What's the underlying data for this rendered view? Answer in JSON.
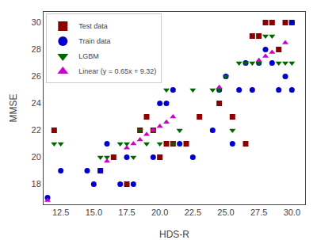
{
  "chart_data": {
    "type": "scatter",
    "xlabel": "HDS-R",
    "ylabel": "MMSE",
    "series": [
      {
        "name": "Test data",
        "color": "#8b0000",
        "marker": "square-x",
        "x": [
          12.0,
          15.5,
          16.5,
          17.5,
          18.5,
          19.0,
          19.5,
          20.0,
          20.5,
          21.0,
          22.0,
          23.0,
          24.5,
          25.5,
          26.5,
          27.0,
          27.5,
          28.0,
          28.5,
          29.0,
          29.5,
          30.0
        ],
        "values": [
          22,
          19,
          20,
          18,
          22,
          23,
          22,
          20,
          21,
          21,
          21,
          23,
          24,
          23,
          21,
          29,
          29,
          30,
          30,
          28,
          30,
          30
        ]
      },
      {
        "name": "Train data",
        "color": "#0000cc",
        "marker": "circle",
        "x": [
          11.5,
          12.5,
          14.5,
          15.0,
          15.5,
          16.0,
          17.0,
          17.5,
          18.0,
          19.5,
          20.0,
          20.5,
          21.0,
          21.5,
          22.5,
          24.0,
          24.5,
          25.0,
          25.5,
          26.0,
          26.5,
          27.0,
          27.5,
          28.0,
          28.5,
          29.0,
          29.5,
          30.0,
          30.0
        ],
        "values": [
          17,
          19,
          19,
          18,
          19,
          21,
          18,
          20,
          18,
          20,
          24,
          24,
          25,
          21,
          20,
          22,
          25,
          26,
          21,
          25,
          27,
          25,
          27,
          28,
          27,
          25,
          26,
          25,
          30
        ]
      },
      {
        "name": "LGBM",
        "color": "#006400",
        "marker": "triangle-down",
        "x": [
          12.0,
          12.5,
          15.5,
          16.0,
          17.0,
          17.5,
          18.0,
          18.5,
          19.0,
          19.5,
          20.0,
          20.5,
          21.0,
          21.5,
          22.5,
          24.0,
          24.5,
          25.0,
          25.5,
          26.0,
          26.5,
          27.0,
          27.5,
          28.0,
          28.5,
          29.0,
          29.5,
          30.0
        ],
        "values": [
          21,
          21,
          20,
          20,
          21,
          21,
          20,
          22,
          21,
          22,
          21,
          25,
          21,
          22,
          25,
          25,
          25,
          26,
          22,
          27,
          27,
          27,
          27,
          29,
          29,
          27,
          27,
          27
        ]
      },
      {
        "name": "Linear (y = 0.65x + 9.32)",
        "color": "#cc00cc",
        "marker": "triangle-up",
        "x": [
          11.5,
          16.0,
          17.5,
          18.0,
          18.5,
          19.0,
          19.5,
          20.0,
          20.5,
          21.0,
          24.5,
          27.5,
          28.0,
          28.5,
          29.5
        ],
        "values": [
          16.8,
          19.7,
          20.7,
          21.0,
          21.3,
          21.7,
          22.0,
          22.3,
          22.6,
          23.0,
          25.2,
          27.2,
          27.5,
          27.8,
          28.5
        ]
      }
    ],
    "xlim": [
      11.2,
      31.0
    ],
    "ylim": [
      16.5,
      30.8
    ],
    "xticks": [
      12.5,
      {
        "value": 15.0,
        "label": "15.0"
      },
      17.5,
      {
        "value": 20.0,
        "label": "20.0"
      },
      22.5,
      {
        "value": 25.0,
        "label": "25.0"
      },
      27.5,
      {
        "value": 30.0,
        "label": "30.0"
      }
    ],
    "yticks": [
      18,
      20,
      22,
      24,
      26,
      28,
      30
    ],
    "grid": false,
    "legend": "upper left"
  }
}
